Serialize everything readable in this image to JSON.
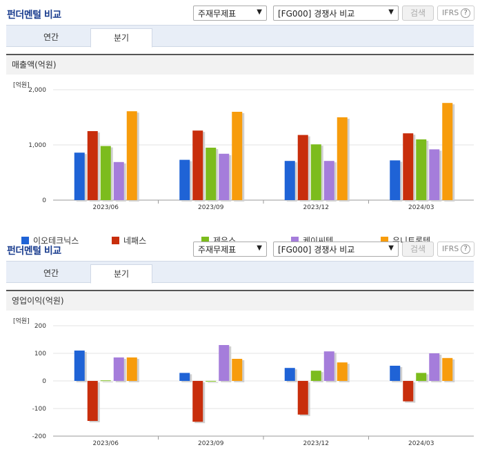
{
  "header": {
    "title": "펀더멘털 비교",
    "select1": "주재무제표",
    "select2": "[FG000] 경쟁사 비교",
    "search_btn": "검색",
    "ifrs": "IFRS",
    "help": "?"
  },
  "tabs": [
    "연간",
    "분기"
  ],
  "colors": [
    "#1f63d6",
    "#c82e0c",
    "#7cbc1d",
    "#a57ddb",
    "#f79c0c"
  ],
  "chart_data": [
    {
      "type": "bar",
      "title": "매출액(억원)",
      "unit_label": "[억원]",
      "categories": [
        "2023/06",
        "2023/09",
        "2023/12",
        "2024/03"
      ],
      "ylim": [
        0,
        2000
      ],
      "yticks": [
        0,
        1000,
        2000
      ],
      "ytick_labels": [
        "0",
        "1,000",
        "2,000"
      ],
      "grid": true,
      "legend_position": "bottom",
      "series": [
        {
          "name": "이오테크닉스",
          "values": [
            860,
            730,
            710,
            720
          ]
        },
        {
          "name": "네패스",
          "values": [
            1250,
            1260,
            1180,
            1210
          ]
        },
        {
          "name": "제우스",
          "values": [
            980,
            950,
            1010,
            1100
          ]
        },
        {
          "name": "케이씨텍",
          "values": [
            690,
            840,
            710,
            920
          ]
        },
        {
          "name": "유니트론텍",
          "values": [
            1610,
            1600,
            1500,
            1760
          ]
        }
      ]
    },
    {
      "type": "bar",
      "title": "영업이익(억원)",
      "unit_label": "[억원]",
      "categories": [
        "2023/06",
        "2023/09",
        "2023/12",
        "2024/03"
      ],
      "ylim": [
        -200,
        200
      ],
      "yticks": [
        -200,
        -100,
        0,
        100,
        200
      ],
      "ytick_labels": [
        "-200",
        "-100",
        "0",
        "100",
        "200"
      ],
      "grid": true,
      "legend_position": "bottom",
      "series": [
        {
          "name": "이오테크닉스",
          "values": [
            110,
            29,
            47,
            55
          ]
        },
        {
          "name": "네패스",
          "values": [
            -145,
            -148,
            -122,
            -74
          ]
        },
        {
          "name": "제우스",
          "values": [
            2,
            0,
            37,
            29
          ]
        },
        {
          "name": "케이씨텍",
          "values": [
            85,
            130,
            107,
            100
          ]
        },
        {
          "name": "유니트론텍",
          "values": [
            85,
            80,
            67,
            83
          ]
        }
      ]
    }
  ]
}
